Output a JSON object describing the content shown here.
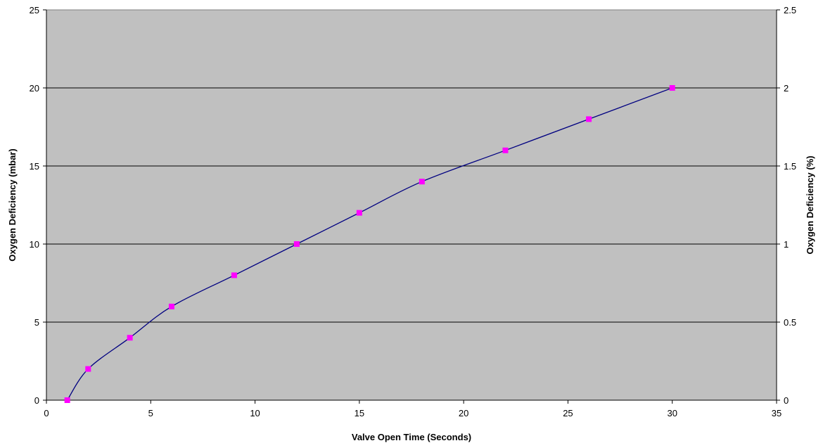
{
  "chart_data": {
    "type": "line",
    "title": "",
    "xlabel": "Valve Open Time (Seconds)",
    "ylabel": "Oxygen Deficiency (mbar)",
    "y2label": "Oxygen Deficiency (%)",
    "xlim": [
      0,
      35
    ],
    "ylim": [
      0,
      25
    ],
    "y2lim": [
      0,
      2.5
    ],
    "x_ticks": [
      "0",
      "5",
      "10",
      "15",
      "20",
      "25",
      "30",
      "35"
    ],
    "y_ticks": [
      "0",
      "5",
      "10",
      "15",
      "20",
      "25"
    ],
    "y2_ticks": [
      "0",
      "0.5",
      "1",
      "1.5",
      "2",
      "2.5"
    ],
    "grid": "horizontal",
    "legend": "none",
    "series": [
      {
        "x": [
          1,
          2,
          4,
          6,
          9,
          12,
          15,
          18,
          22,
          26,
          30
        ],
        "y": [
          0,
          2,
          4,
          6,
          8,
          10,
          12,
          14,
          16,
          18,
          20
        ],
        "line_color": "#000080",
        "marker": "square",
        "marker_color": "#ff00ff"
      }
    ],
    "plot_background": "#c0c0c0"
  }
}
